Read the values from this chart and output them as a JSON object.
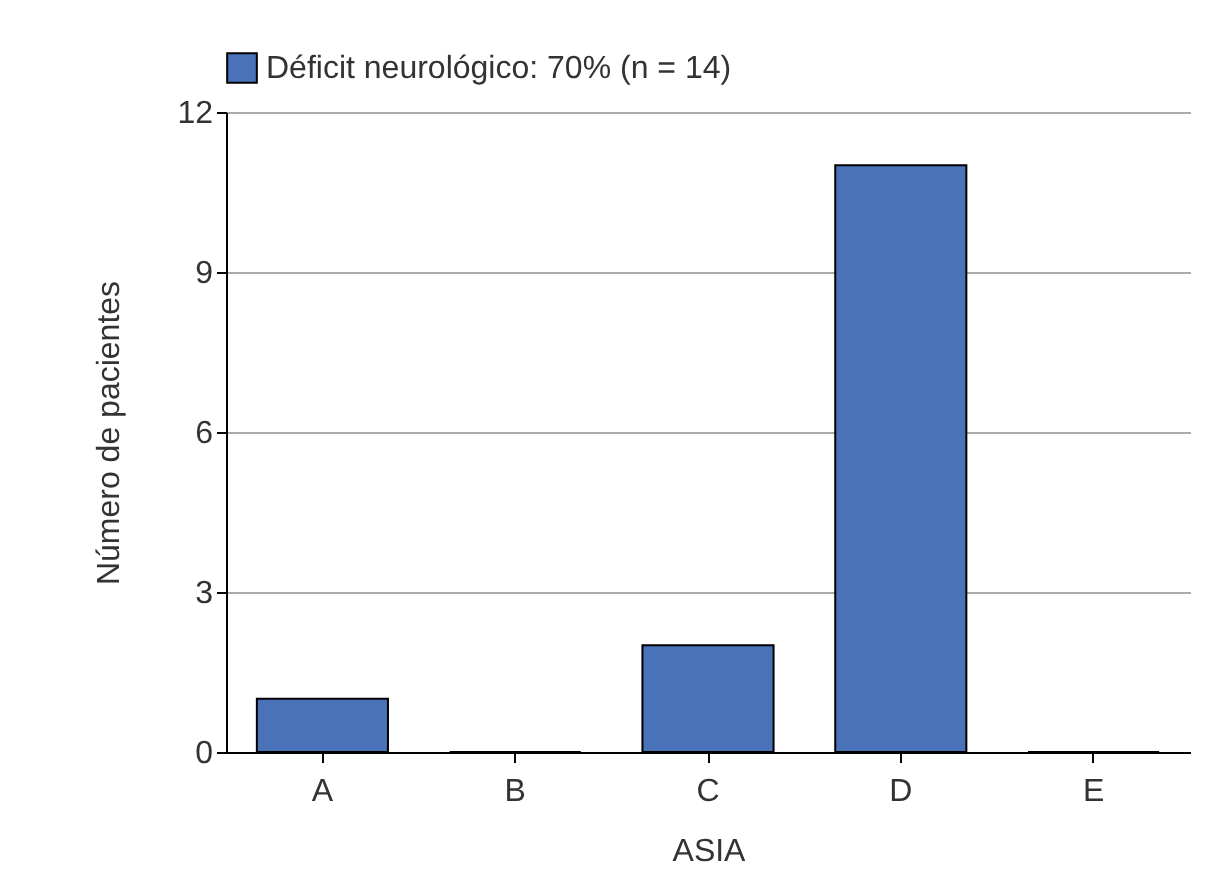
{
  "chart_data": {
    "type": "bar",
    "xlabel": "ASIA",
    "ylabel": "Número de pacientes",
    "categories": [
      "A",
      "B",
      "C",
      "D",
      "E"
    ],
    "series": [
      {
        "name": "Déficit neurológico: 70% (n = 14)",
        "color": "#4a72b8",
        "values": [
          1,
          0,
          2,
          11,
          0
        ]
      }
    ],
    "ylim": [
      0,
      12
    ],
    "yticks": [
      0,
      3,
      6,
      9,
      12
    ],
    "grid": "y",
    "legend": "top"
  }
}
